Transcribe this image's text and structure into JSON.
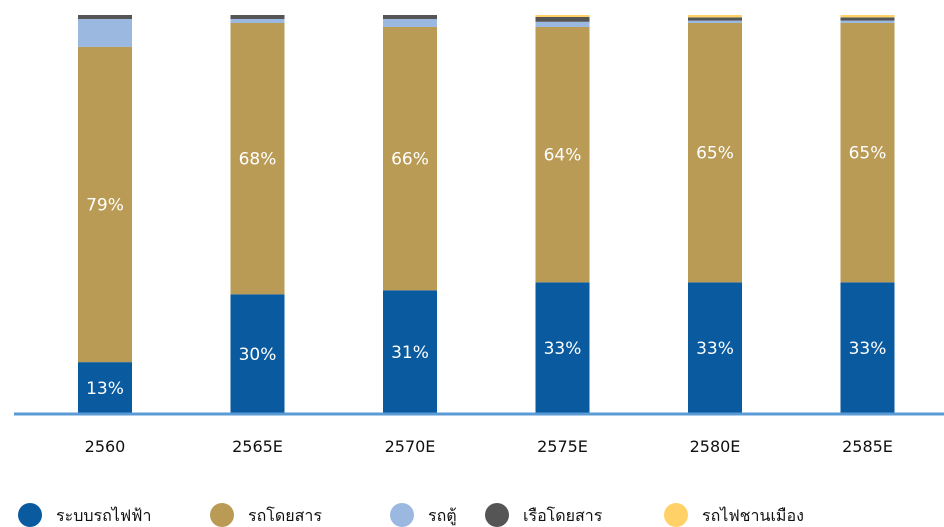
{
  "chart_data": {
    "type": "bar",
    "stacked": true,
    "percent_stacked": true,
    "categories": [
      "2560",
      "2565E",
      "2570E",
      "2575E",
      "2580E",
      "2585E"
    ],
    "series": [
      {
        "name": "ระบบรถไฟฟ้า",
        "color": "#0a5aa0",
        "values": [
          13,
          30,
          31,
          33,
          33,
          33
        ],
        "labels": [
          "13%",
          "30%",
          "31%",
          "33%",
          "33%",
          "33%"
        ]
      },
      {
        "name": "รถโดยสาร",
        "color": "#b99b55",
        "values": [
          79,
          68,
          66,
          64,
          65,
          65
        ],
        "labels": [
          "79%",
          "68%",
          "66%",
          "64%",
          "65%",
          "65%"
        ]
      },
      {
        "name": "รถตู้",
        "color": "#9bb8e0",
        "values": [
          7,
          1,
          2,
          1.3,
          0.6,
          0.6
        ],
        "labels": [
          "",
          "",
          "",
          "",
          "",
          ""
        ]
      },
      {
        "name": "เรือโดยสาร",
        "color": "#555555",
        "values": [
          1,
          1,
          1,
          1.2,
          0.8,
          0.8
        ],
        "labels": [
          "",
          "",
          "",
          "",
          "",
          ""
        ]
      },
      {
        "name": "รถไฟชานเมือง",
        "color": "#ffd166",
        "values": [
          0,
          0,
          0,
          0.5,
          0.6,
          0.6
        ],
        "labels": [
          "",
          "",
          "",
          "",
          "",
          ""
        ]
      }
    ],
    "ylim": [
      0,
      100
    ],
    "grid": false,
    "legend_position": "bottom",
    "axis_color": "#5b9bd5"
  }
}
